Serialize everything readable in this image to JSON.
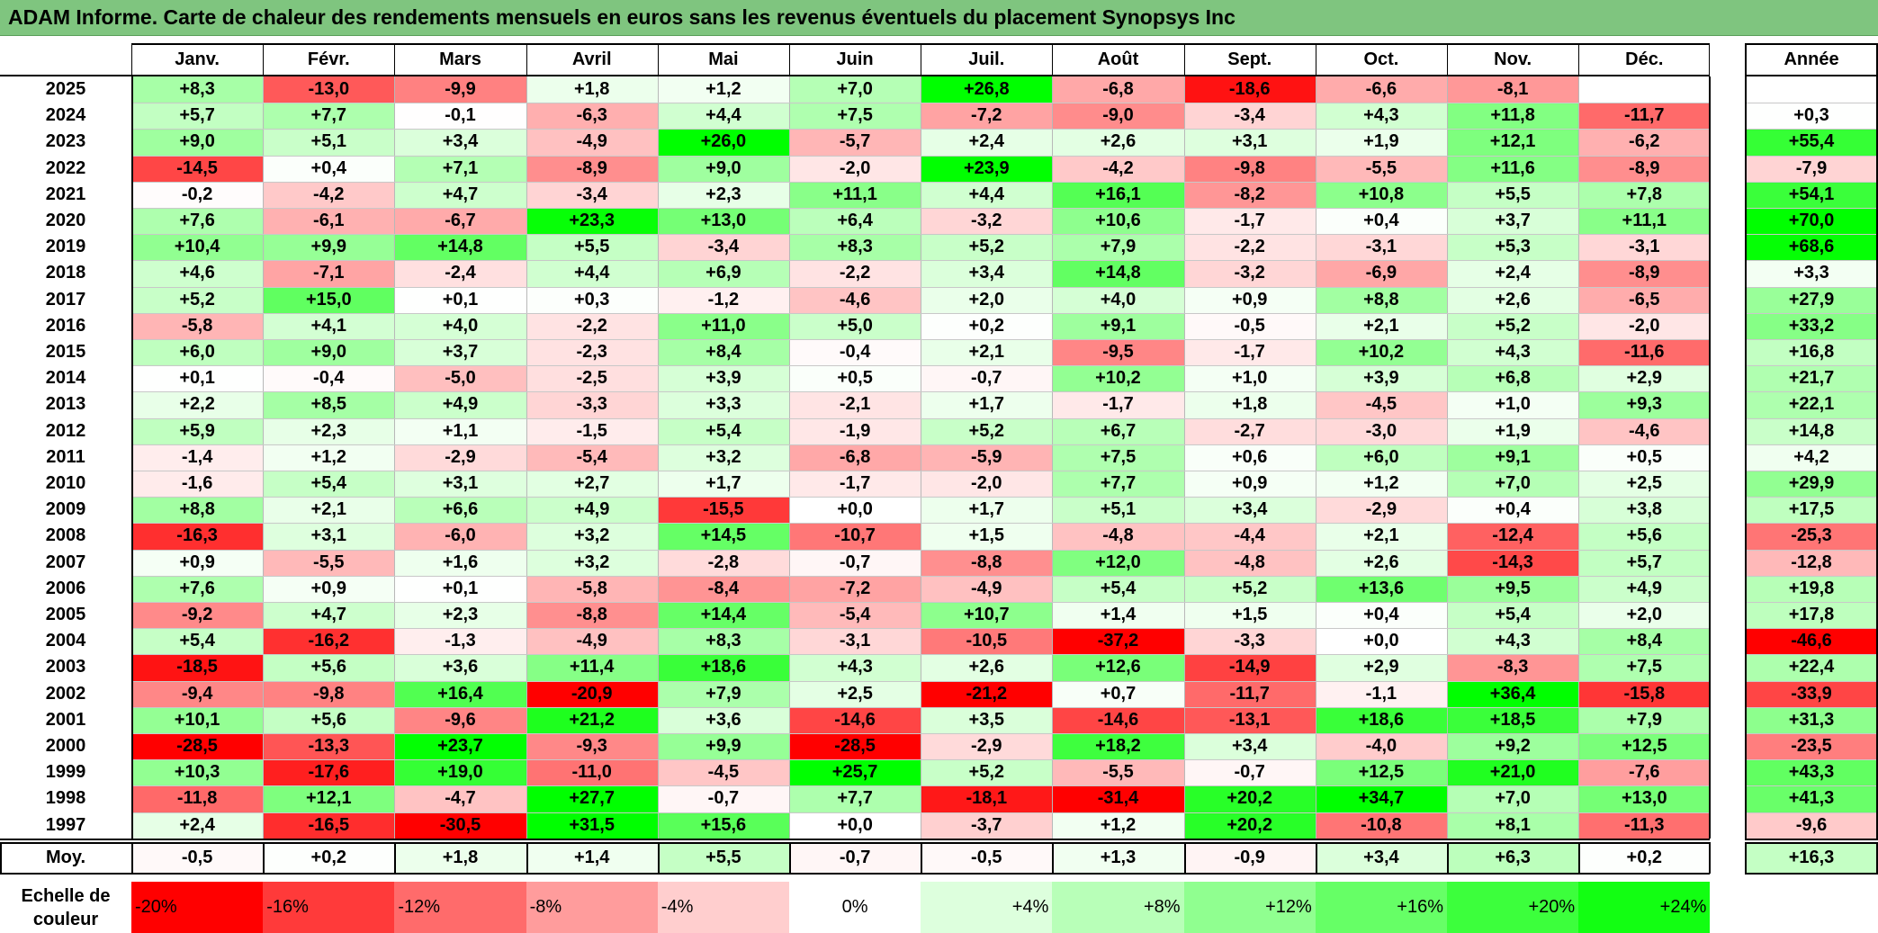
{
  "title": "ADAM Informe. Carte de chaleur des rendements mensuels en euros sans les revenus éventuels du placement Synopsys Inc",
  "chart_data": {
    "type": "heatmap",
    "title": "ADAM Informe. Carte de chaleur des rendements mensuels en euros sans les revenus éventuels du placement Synopsys Inc",
    "columns": [
      "Janv.",
      "Févr.",
      "Mars",
      "Avril",
      "Mai",
      "Juin",
      "Juil.",
      "Août",
      "Sept.",
      "Oct.",
      "Nov.",
      "Déc."
    ],
    "annual_label": "Année",
    "rows_tsv": "2025\t+8,3\t-13,0\t-9,9\t+1,8\t+1,2\t+7,0\t+26,8\t-6,8\t-18,6\t-6,6\t-8,1\t\t\n2024\t+5,7\t+7,7\t-0,1\t-6,3\t+4,4\t+7,5\t-7,2\t-9,0\t-3,4\t+4,3\t+11,8\t-11,7\t+0,3\n2023\t+9,0\t+5,1\t+3,4\t-4,9\t+26,0\t-5,7\t+2,4\t+2,6\t+3,1\t+1,9\t+12,1\t-6,2\t+55,4\n2022\t-14,5\t+0,4\t+7,1\t-8,9\t+9,0\t-2,0\t+23,9\t-4,2\t-9,8\t-5,5\t+11,6\t-8,9\t-7,9\n2021\t-0,2\t-4,2\t+4,7\t-3,4\t+2,3\t+11,1\t+4,4\t+16,1\t-8,2\t+10,8\t+5,5\t+7,8\t+54,1\n2020\t+7,6\t-6,1\t-6,7\t+23,3\t+13,0\t+6,4\t-3,2\t+10,6\t-1,7\t+0,4\t+3,7\t+11,1\t+70,0\n2019\t+10,4\t+9,9\t+14,8\t+5,5\t-3,4\t+8,3\t+5,2\t+7,9\t-2,2\t-3,1\t+5,3\t-3,1\t+68,6\n2018\t+4,6\t-7,1\t-2,4\t+4,4\t+6,9\t-2,2\t+3,4\t+14,8\t-3,2\t-6,9\t+2,4\t-8,9\t+3,3\n2017\t+5,2\t+15,0\t+0,1\t+0,3\t-1,2\t-4,6\t+2,0\t+4,0\t+0,9\t+8,8\t+2,6\t-6,5\t+27,9\n2016\t-5,8\t+4,1\t+4,0\t-2,2\t+11,0\t+5,0\t+0,2\t+9,1\t-0,5\t+2,1\t+5,2\t-2,0\t+33,2\n2015\t+6,0\t+9,0\t+3,7\t-2,3\t+8,4\t-0,4\t+2,1\t-9,5\t-1,7\t+10,2\t+4,3\t-11,6\t+16,8\n2014\t+0,1\t-0,4\t-5,0\t-2,5\t+3,9\t+0,5\t-0,7\t+10,2\t+1,0\t+3,9\t+6,8\t+2,9\t+21,7\n2013\t+2,2\t+8,5\t+4,9\t-3,3\t+3,3\t-2,1\t+1,7\t-1,7\t+1,8\t-4,5\t+1,0\t+9,3\t+22,1\n2012\t+5,9\t+2,3\t+1,1\t-1,5\t+5,4\t-1,9\t+5,2\t+6,7\t-2,7\t-3,0\t+1,9\t-4,6\t+14,8\n2011\t-1,4\t+1,2\t-2,9\t-5,4\t+3,2\t-6,8\t-5,9\t+7,5\t+0,6\t+6,0\t+9,1\t+0,5\t+4,2\n2010\t-1,6\t+5,4\t+3,1\t+2,7\t+1,7\t-1,7\t-2,0\t+7,7\t+0,9\t+1,2\t+7,0\t+2,5\t+29,9\n2009\t+8,8\t+2,1\t+6,6\t+4,9\t-15,5\t+0,0\t+1,7\t+5,1\t+3,4\t-2,9\t+0,4\t+3,8\t+17,5\n2008\t-16,3\t+3,1\t-6,0\t+3,2\t+14,5\t-10,7\t+1,5\t-4,8\t-4,4\t+2,1\t-12,4\t+5,6\t-25,3\n2007\t+0,9\t-5,5\t+1,6\t+3,2\t-2,8\t-0,7\t-8,8\t+12,0\t-4,8\t+2,6\t-14,3\t+5,7\t-12,8\n2006\t+7,6\t+0,9\t+0,1\t-5,8\t-8,4\t-7,2\t-4,9\t+5,4\t+5,2\t+13,6\t+9,5\t+4,9\t+19,8\n2005\t-9,2\t+4,7\t+2,3\t-8,8\t+14,4\t-5,4\t+10,7\t+1,4\t+1,5\t+0,4\t+5,4\t+2,0\t+17,8\n2004\t+5,4\t-16,2\t-1,3\t-4,9\t+8,3\t-3,1\t-10,5\t-37,2\t-3,3\t+0,0\t+4,3\t+8,4\t-46,6\n2003\t-18,5\t+5,6\t+3,6\t+11,4\t+18,6\t+4,3\t+2,6\t+12,6\t-14,9\t+2,9\t-8,3\t+7,5\t+22,4\n2002\t-9,4\t-9,8\t+16,4\t-20,9\t+7,9\t+2,5\t-21,2\t+0,7\t-11,7\t-1,1\t+36,4\t-15,8\t-33,9\n2001\t+10,1\t+5,6\t-9,6\t+21,2\t+3,6\t-14,6\t+3,5\t-14,6\t-13,1\t+18,6\t+18,5\t+7,9\t+31,3\n2000\t-28,5\t-13,3\t+23,7\t-9,3\t+9,9\t-28,5\t-2,9\t+18,2\t+3,4\t-4,0\t+9,2\t+12,5\t-23,5\n1999\t+10,3\t-17,6\t+19,0\t-11,0\t-4,5\t+25,7\t+5,2\t-5,5\t-0,7\t+12,5\t+21,0\t-7,6\t+43,3\n1998\t-11,8\t+12,1\t-4,7\t+27,7\t-0,7\t+7,7\t-18,1\t-31,4\t+20,2\t+34,7\t+7,0\t+13,0\t+41,3\n1997\t+2,4\t-16,5\t-30,5\t+31,5\t+15,6\t+0,0\t-3,7\t+1,2\t+20,2\t-10,8\t+8,1\t-11,3\t-9,6",
    "average": {
      "label": "Moy.",
      "values": [
        "-0,5",
        "+0,2",
        "+1,8",
        "+1,4",
        "+5,5",
        "-0,7",
        "-0,5",
        "+1,3",
        "-0,9",
        "+3,4",
        "+6,3",
        "+0,2"
      ],
      "annual": "+16,3"
    },
    "scale": {
      "label_line1": "Echelle de",
      "label_line2": "couleur",
      "stops": [
        "-20%",
        "-16%",
        "-12%",
        "-8%",
        "-4%",
        "0%",
        "+4%",
        "+8%",
        "+12%",
        "+16%",
        "+20%",
        "+24%"
      ],
      "colors": [
        "#ff0000",
        "#ff3a3a",
        "#ff6b6b",
        "#ff9c9c",
        "#ffcece",
        "#ffffff",
        "#ddffdd",
        "#b8ffb8",
        "#90ff90",
        "#66ff66",
        "#3cff3c",
        "#12ff12"
      ]
    },
    "colors": {
      "min": "#ff0000",
      "mid": "#ffffff",
      "max": "#00ff00"
    },
    "color_range": [
      -20,
      24
    ]
  }
}
